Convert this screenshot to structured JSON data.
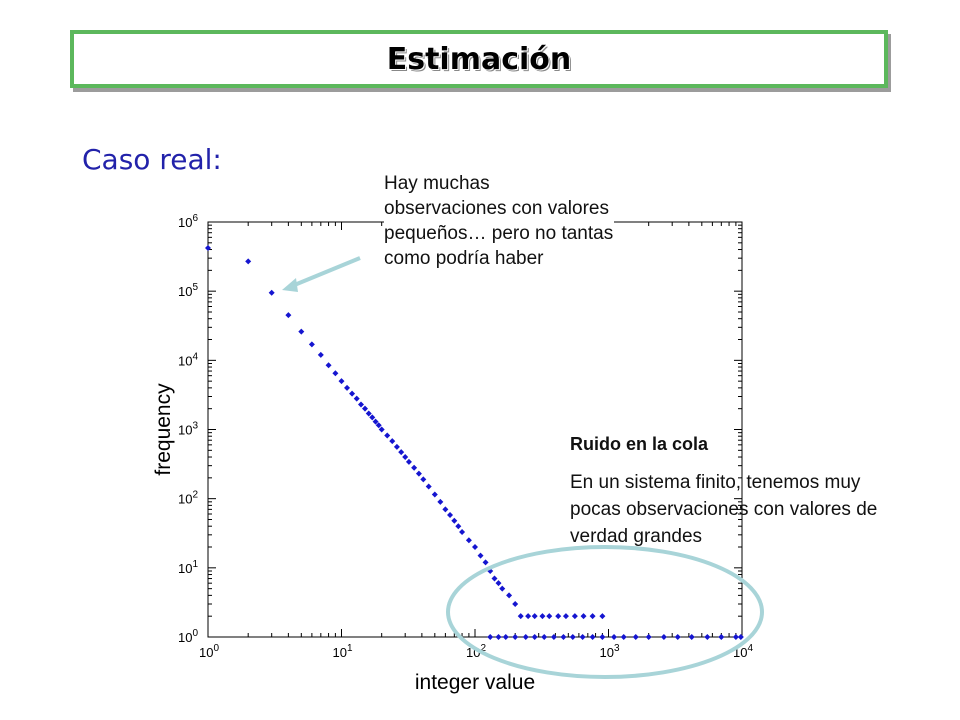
{
  "header": {
    "title": "Estimación"
  },
  "subtitle": "Caso real:",
  "annotations": {
    "top_note": "Hay muchas observaciones con valores pequeños… pero no tantas como podría haber",
    "tail_title": "Ruido en la cola",
    "tail_note": "En un sistema finito, tenemos muy pocas observaciones con valores de verdad grandes"
  },
  "colors": {
    "points": "#1515d0",
    "highlight": "#a8d4d8",
    "title_border": "#5cb85c",
    "subtitle": "#2222aa"
  },
  "chart_data": {
    "type": "scatter",
    "title": "",
    "xlabel": "integer value",
    "ylabel": "frequency",
    "xscale": "log",
    "yscale": "log",
    "xlim": [
      1,
      10000
    ],
    "ylim": [
      1,
      1000000
    ],
    "x_ticks": [
      "10^0",
      "10^1",
      "10^2",
      "10^3",
      "10^4"
    ],
    "y_ticks": [
      "10^0",
      "10^1",
      "10^2",
      "10^3",
      "10^4",
      "10^5",
      "10^6"
    ],
    "grid": false,
    "series": [
      {
        "points": [
          [
            1,
            420000
          ],
          [
            2,
            270000
          ],
          [
            3,
            95000
          ],
          [
            4,
            45000
          ],
          [
            5,
            26000
          ],
          [
            6,
            17000
          ],
          [
            7,
            12000
          ],
          [
            8,
            8500
          ],
          [
            9,
            6500
          ],
          [
            10,
            5000
          ],
          [
            11,
            4000
          ],
          [
            12,
            3300
          ],
          [
            13,
            2800
          ],
          [
            14,
            2300
          ],
          [
            15,
            2000
          ],
          [
            16,
            1700
          ],
          [
            17,
            1500
          ],
          [
            18,
            1300
          ],
          [
            19,
            1150
          ],
          [
            20,
            1000
          ],
          [
            22,
            820
          ],
          [
            24,
            680
          ],
          [
            26,
            560
          ],
          [
            28,
            470
          ],
          [
            30,
            400
          ],
          [
            32,
            340
          ],
          [
            35,
            280
          ],
          [
            38,
            230
          ],
          [
            41,
            190
          ],
          [
            45,
            150
          ],
          [
            50,
            115
          ],
          [
            55,
            90
          ],
          [
            60,
            70
          ],
          [
            65,
            58
          ],
          [
            70,
            48
          ],
          [
            75,
            40
          ],
          [
            80,
            33
          ],
          [
            90,
            25
          ],
          [
            100,
            20
          ],
          [
            110,
            15
          ],
          [
            120,
            12
          ],
          [
            130,
            9
          ],
          [
            140,
            7
          ],
          [
            150,
            6
          ],
          [
            160,
            5
          ],
          [
            180,
            4
          ],
          [
            200,
            3
          ],
          [
            220,
            2
          ],
          [
            250,
            2
          ],
          [
            280,
            2
          ],
          [
            320,
            2
          ],
          [
            360,
            2
          ],
          [
            420,
            2
          ],
          [
            480,
            2
          ],
          [
            560,
            2
          ],
          [
            650,
            2
          ],
          [
            760,
            2
          ],
          [
            900,
            2
          ],
          [
            130,
            1
          ],
          [
            150,
            1
          ],
          [
            170,
            1
          ],
          [
            200,
            1
          ],
          [
            240,
            1
          ],
          [
            280,
            1
          ],
          [
            330,
            1
          ],
          [
            390,
            1
          ],
          [
            460,
            1
          ],
          [
            540,
            1
          ],
          [
            640,
            1
          ],
          [
            760,
            1
          ],
          [
            900,
            1
          ],
          [
            1100,
            1
          ],
          [
            1300,
            1
          ],
          [
            1600,
            1
          ],
          [
            2000,
            1
          ],
          [
            2600,
            1
          ],
          [
            3300,
            1
          ],
          [
            4200,
            1
          ],
          [
            5500,
            1
          ],
          [
            7000,
            1
          ],
          [
            9000,
            1
          ],
          [
            9800,
            1
          ]
        ]
      }
    ]
  }
}
